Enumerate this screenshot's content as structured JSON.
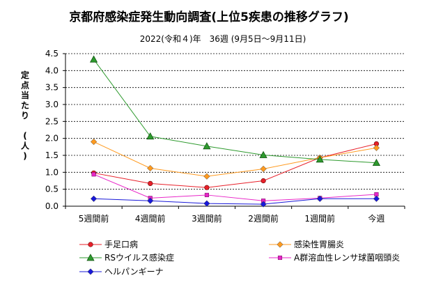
{
  "chart_data": {
    "type": "line",
    "title": "京都府感染症発生動向調査(上位5疾患の推移グラフ)",
    "subtitle": "2022(令和４)年　36週 (9月5日〜9月11日)",
    "ylabel": "定点当たり　(人)",
    "xlabel": "",
    "categories": [
      "5週間前",
      "4週間前",
      "3週間前",
      "2週間前",
      "1週間前",
      "今週"
    ],
    "ylim": [
      0,
      4.5
    ],
    "yticks": [
      "0.0",
      "0.5",
      "1.0",
      "1.5",
      "2.0",
      "2.5",
      "3.0",
      "3.5",
      "4.0",
      "4.5"
    ],
    "grid": true,
    "legend_position": "bottom",
    "series": [
      {
        "name": "手足口病",
        "values": [
          0.98,
          0.67,
          0.55,
          0.75,
          1.43,
          1.84
        ],
        "color": "#e8202a",
        "marker": "circle"
      },
      {
        "name": "感染性胃腸炎",
        "values": [
          1.9,
          1.12,
          0.88,
          1.1,
          1.43,
          1.72
        ],
        "color": "#ff9a1f",
        "marker": "diamond"
      },
      {
        "name": "RSウイルス感染症",
        "values": [
          4.33,
          2.06,
          1.77,
          1.51,
          1.38,
          1.28
        ],
        "color": "#2e9a2e",
        "marker": "triangle"
      },
      {
        "name": "A群溶血性レンサ球菌咽頭炎",
        "values": [
          0.94,
          0.24,
          0.33,
          0.16,
          0.24,
          0.35
        ],
        "color": "#e826c8",
        "marker": "square"
      },
      {
        "name": "ヘルパンギーナ",
        "values": [
          0.22,
          0.16,
          0.08,
          0.06,
          0.22,
          0.22
        ],
        "color": "#1818d8",
        "marker": "diamond"
      }
    ]
  }
}
